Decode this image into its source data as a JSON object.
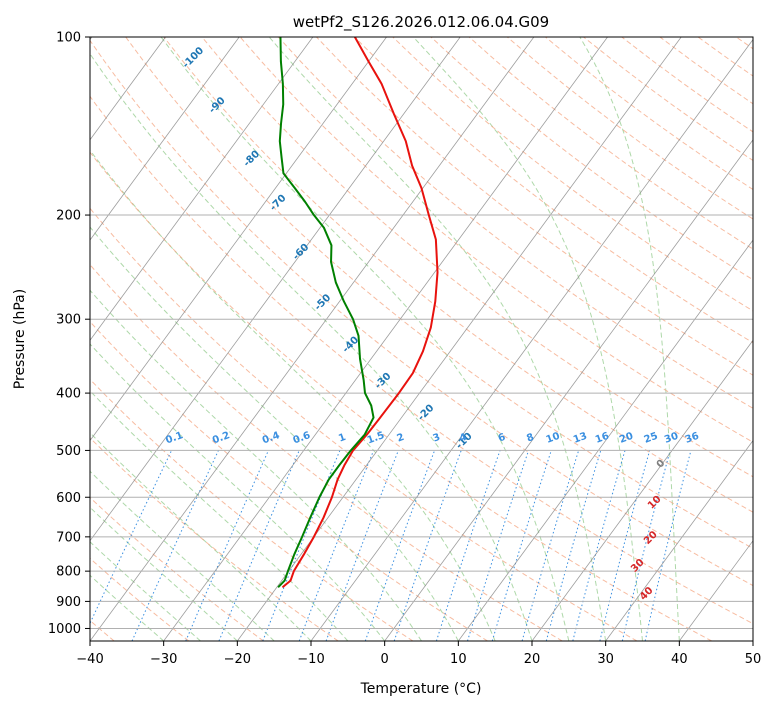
{
  "chart_data": {
    "type": "line",
    "subtype": "skew-t log-p",
    "title": "wetPf2_S126.2026.012.06.04.G09",
    "xlabel": "Temperature (°C)",
    "ylabel": "Pressure (hPa)",
    "xlim": [
      -40,
      50
    ],
    "ylim": [
      1050,
      100
    ],
    "x_ticks": [
      -40,
      -30,
      -20,
      -10,
      0,
      10,
      20,
      30,
      40,
      50
    ],
    "x_tick_labels": [
      "−40",
      "−30",
      "−20",
      "−10",
      "0",
      "10",
      "20",
      "30",
      "40",
      "50"
    ],
    "y_ticks": [
      100,
      200,
      300,
      400,
      500,
      600,
      700,
      800,
      900,
      1000
    ],
    "y_tick_labels": [
      "100",
      "200",
      "300",
      "400",
      "500",
      "600",
      "700",
      "800",
      "900",
      "1000"
    ],
    "grid": true,
    "series": [
      {
        "name": "temperature",
        "color": "#e8120e",
        "points": [
          {
            "p": 850,
            "t": -19.2
          },
          {
            "p": 830,
            "t": -18.8
          },
          {
            "p": 800,
            "t": -19.3
          },
          {
            "p": 750,
            "t": -19.6
          },
          {
            "p": 700,
            "t": -20.0
          },
          {
            "p": 650,
            "t": -20.6
          },
          {
            "p": 600,
            "t": -21.5
          },
          {
            "p": 560,
            "t": -22.5
          },
          {
            "p": 530,
            "t": -23.0
          },
          {
            "p": 500,
            "t": -23.3
          },
          {
            "p": 470,
            "t": -23.0
          },
          {
            "p": 440,
            "t": -22.9
          },
          {
            "p": 400,
            "t": -22.8
          },
          {
            "p": 370,
            "t": -22.9
          },
          {
            "p": 340,
            "t": -23.7
          },
          {
            "p": 310,
            "t": -25.0
          },
          {
            "p": 280,
            "t": -27.0
          },
          {
            "p": 250,
            "t": -29.6
          },
          {
            "p": 220,
            "t": -33.1
          },
          {
            "p": 200,
            "t": -36.5
          },
          {
            "p": 180,
            "t": -40.2
          },
          {
            "p": 165,
            "t": -43.7
          },
          {
            "p": 150,
            "t": -47.0
          },
          {
            "p": 135,
            "t": -51.3
          },
          {
            "p": 120,
            "t": -56.0
          },
          {
            "p": 110,
            "t": -60.0
          },
          {
            "p": 100,
            "t": -64.3
          }
        ]
      },
      {
        "name": "dewpoint",
        "color": "#008000",
        "points": [
          {
            "p": 850,
            "t": -19.8
          },
          {
            "p": 830,
            "t": -19.6
          },
          {
            "p": 800,
            "t": -20.1
          },
          {
            "p": 750,
            "t": -20.9
          },
          {
            "p": 700,
            "t": -21.6
          },
          {
            "p": 650,
            "t": -22.4
          },
          {
            "p": 600,
            "t": -23.2
          },
          {
            "p": 560,
            "t": -23.7
          },
          {
            "p": 530,
            "t": -23.7
          },
          {
            "p": 500,
            "t": -23.6
          },
          {
            "p": 470,
            "t": -23.3
          },
          {
            "p": 440,
            "t": -23.8
          },
          {
            "p": 420,
            "t": -25.3
          },
          {
            "p": 400,
            "t": -27.4
          },
          {
            "p": 380,
            "t": -28.9
          },
          {
            "p": 350,
            "t": -31.5
          },
          {
            "p": 320,
            "t": -34.0
          },
          {
            "p": 300,
            "t": -36.4
          },
          {
            "p": 280,
            "t": -39.4
          },
          {
            "p": 260,
            "t": -42.4
          },
          {
            "p": 240,
            "t": -45.1
          },
          {
            "p": 225,
            "t": -46.7
          },
          {
            "p": 210,
            "t": -49.5
          },
          {
            "p": 200,
            "t": -52.1
          },
          {
            "p": 190,
            "t": -54.6
          },
          {
            "p": 180,
            "t": -57.4
          },
          {
            "p": 170,
            "t": -60.4
          },
          {
            "p": 160,
            "t": -62.2
          },
          {
            "p": 150,
            "t": -64.1
          },
          {
            "p": 140,
            "t": -65.7
          },
          {
            "p": 130,
            "t": -67.3
          },
          {
            "p": 120,
            "t": -69.4
          },
          {
            "p": 110,
            "t": -71.9
          },
          {
            "p": 100,
            "t": -74.4
          }
        ]
      }
    ],
    "dry_adiabat_labels": [
      "-100",
      "-90",
      "-80",
      "-70",
      "-60",
      "-50",
      "-40",
      "-30",
      "-20",
      "-10"
    ],
    "moist_adiabat_labels": [
      "0",
      "10",
      "20",
      "30",
      "40"
    ],
    "mixing_ratio_labels": [
      "0.1",
      "0.2",
      "0.4",
      "0.6",
      "1",
      "1.5",
      "2",
      "3",
      "4",
      "6",
      "8",
      "10",
      "13",
      "16",
      "20",
      "25",
      "30",
      "36"
    ],
    "mixing_ratio_values": [
      0.1,
      0.2,
      0.4,
      0.6,
      1,
      1.5,
      2,
      3,
      4,
      6,
      8,
      10,
      13,
      16,
      20,
      25,
      30,
      36
    ]
  }
}
